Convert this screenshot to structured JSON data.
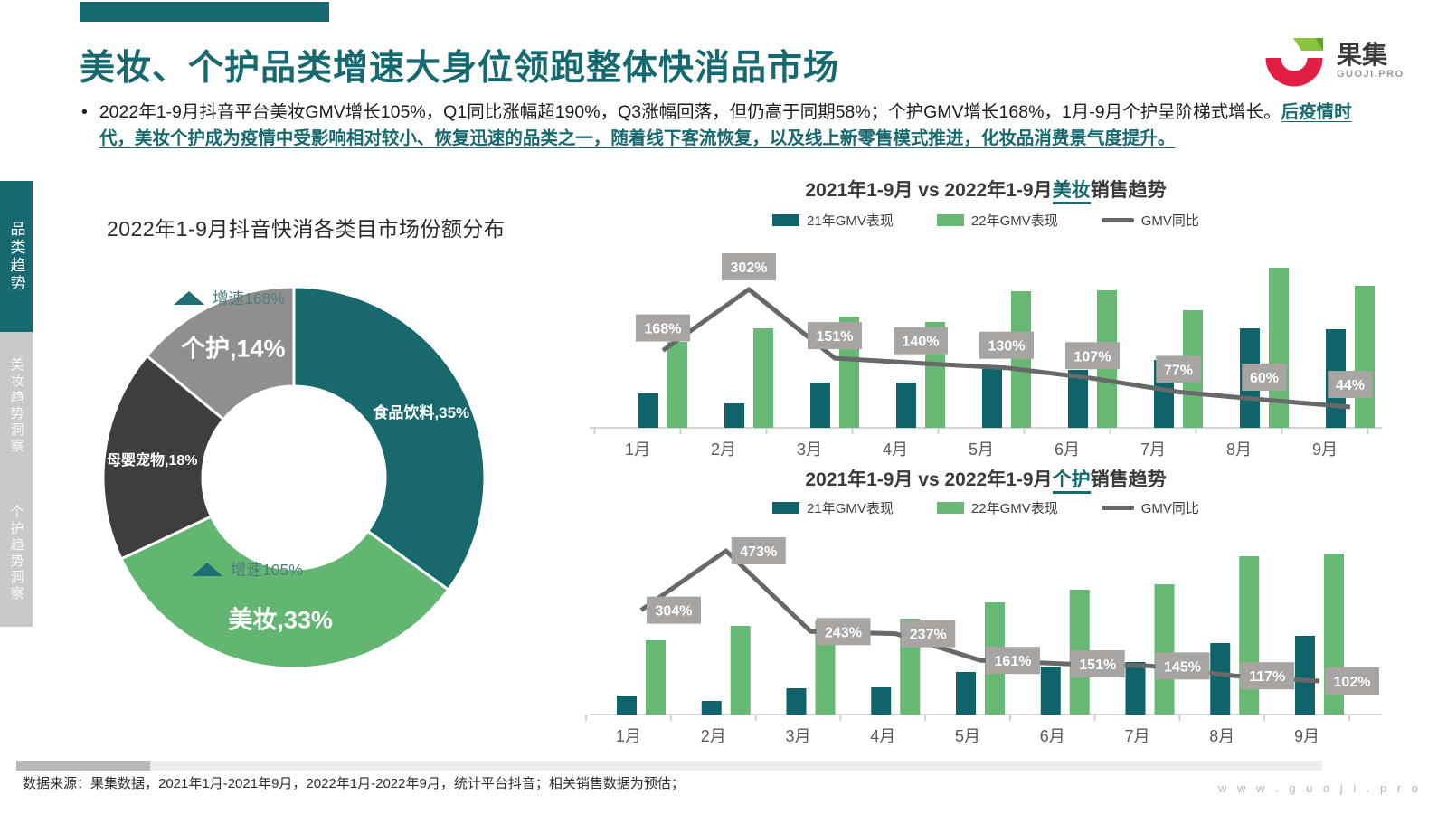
{
  "slide": {
    "title": "美妆、个护品类增速大身位领跑整体快消品市场",
    "accent": "#16696e"
  },
  "logo": {
    "brand": "果集",
    "domain": "GUOJI.PRO",
    "red": "#e21e44",
    "green": "#8bc540"
  },
  "bullet": {
    "marker": "•",
    "text_normal": "2022年1-9月抖音平台美妆GMV增长105%，Q1同比涨幅超190%，Q3涨幅回落，但仍高于同期58%；个护GMV增长168%，1月-9月个护呈阶梯式增长。",
    "text_highlight": "后疫情时代，美妆个护成为疫情中受影响相对较小、恢复迅速的品类之一，随着线下客流恢复，以及线上新零售模式推进，化妆品消费景气度提升。"
  },
  "sidebar": {
    "tabs": [
      {
        "label": "品类趋势",
        "active": true
      },
      {
        "label": "美妆趋势洞察",
        "active": false
      },
      {
        "label": "个护趋势洞察",
        "active": false
      }
    ]
  },
  "chart_data": [
    {
      "type": "pie",
      "variant": "donut",
      "title": "2022年1-9月抖音快消各类目市场份额分布",
      "segments": [
        {
          "label": "食品饮料",
          "share": 35,
          "color": "#17696d"
        },
        {
          "label": "美妆",
          "share": 33,
          "color": "#63b672"
        },
        {
          "label": "母婴宠物",
          "share": 18,
          "color": "#3e3e3e"
        },
        {
          "label": "个护",
          "share": 14,
          "color": "#8f8f8f"
        }
      ],
      "annotations": [
        {
          "text": "增速168%",
          "target": "个护"
        },
        {
          "text": "增速105%",
          "target": "美妆"
        }
      ]
    },
    {
      "type": "bar",
      "variant": "bar+line",
      "title": "2021年1-9月 vs 2022年1-9月美妆销售趋势",
      "title_prefix": "2021年1-9月 vs 2022年1-9月",
      "title_keyword": "美妆",
      "title_suffix": "销售趋势",
      "categories": [
        "1月",
        "2月",
        "3月",
        "4月",
        "5月",
        "6月",
        "7月",
        "8月",
        "9月"
      ],
      "y_axis": "hidden",
      "legend_position": "top",
      "series": [
        {
          "name": "21年GMV表现",
          "color": "#0e646a",
          "values": [
            38,
            27,
            50,
            50,
            65,
            64,
            75,
            110,
            109
          ]
        },
        {
          "name": "22年GMV表现",
          "color": "#66b873",
          "values": [
            95,
            110,
            123,
            117,
            151,
            152,
            130,
            177,
            157
          ]
        }
      ],
      "line": {
        "name": "GMV同比",
        "color": "#686868",
        "values_pct": [
          168,
          302,
          151,
          140,
          130,
          107,
          77,
          60,
          44
        ]
      }
    },
    {
      "type": "bar",
      "variant": "bar+line",
      "title": "2021年1-9月 vs 2022年1-9月个护销售趋势",
      "title_prefix": "2021年1-9月 vs 2022年1-9月",
      "title_keyword": "个护",
      "title_suffix": "销售趋势",
      "categories": [
        "1月",
        "2月",
        "3月",
        "4月",
        "5月",
        "6月",
        "7月",
        "8月",
        "9月"
      ],
      "y_axis": "hidden",
      "legend_position": "top",
      "series": [
        {
          "name": "21年GMV表现",
          "color": "#0e646a",
          "values": [
            21,
            15,
            29,
            30,
            47,
            53,
            58,
            79,
            87
          ]
        },
        {
          "name": "22年GMV表现",
          "color": "#66b873",
          "values": [
            82,
            98,
            104,
            106,
            124,
            138,
            144,
            175,
            178
          ]
        }
      ],
      "line": {
        "name": "GMV同比",
        "color": "#686868",
        "values_pct": [
          304,
          473,
          243,
          237,
          161,
          151,
          145,
          117,
          102
        ]
      }
    }
  ],
  "footer": {
    "source": "数据来源：果集数据，2021年1月-2021年9月，2022年1月-2022年9月，统计平台抖音；相关销售数据为预估；",
    "url": "w w w . g u o j i . p r o"
  }
}
